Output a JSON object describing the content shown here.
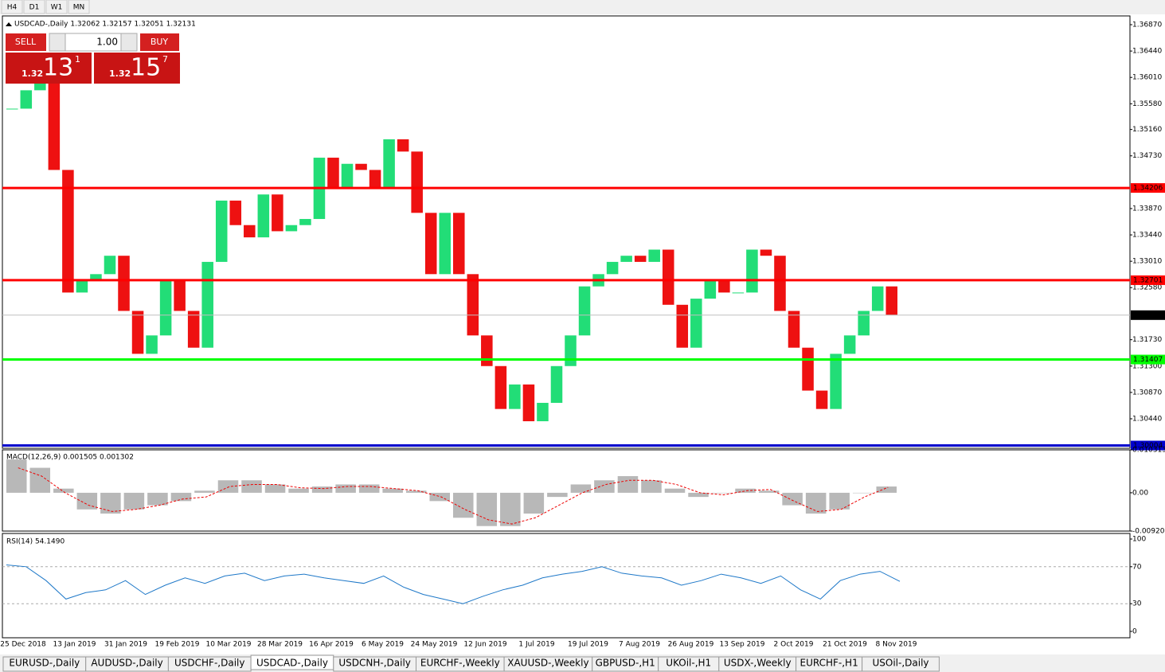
{
  "toolbar": {
    "timeframes": [
      "H4",
      "D1",
      "W1",
      "MN"
    ]
  },
  "trade_panel": {
    "sell": "SELL",
    "buy": "BUY",
    "lot": "1.00",
    "bid": {
      "prefix": "1.32",
      "big": "13",
      "small": "1"
    },
    "ask": {
      "prefix": "1.32",
      "big": "15",
      "small": "7"
    }
  },
  "chart_data": [
    {
      "type": "candlestick",
      "title": "USDCAD-,Daily 1.32062 1.32157 1.32051 1.32131",
      "close": [
        1.355,
        1.358,
        1.362,
        1.345,
        1.325,
        1.327,
        1.328,
        1.331,
        1.322,
        1.315,
        1.318,
        1.327,
        1.322,
        1.316,
        1.33,
        1.34,
        1.336,
        1.334,
        1.341,
        1.335,
        1.336,
        1.337,
        1.347,
        1.342,
        1.346,
        1.345,
        1.342,
        1.35,
        1.348,
        1.338,
        1.328,
        1.338,
        1.328,
        1.318,
        1.313,
        1.306,
        1.31,
        1.304,
        1.307,
        1.313,
        1.318,
        1.326,
        1.328,
        1.33,
        1.331,
        1.33,
        1.332,
        1.323,
        1.316,
        1.324,
        1.327,
        1.325,
        1.325,
        1.332,
        1.331,
        1.322,
        1.316,
        1.309,
        1.306,
        1.315,
        1.318,
        1.322,
        1.326,
        1.32131
      ],
      "ylim": [
        1.29959,
        1.37013
      ],
      "yticks": [
        {
          "value": 1.3687,
          "label": "1.36870"
        },
        {
          "value": 1.3644,
          "label": "1.36440"
        },
        {
          "value": 1.3601,
          "label": "1.36010"
        },
        {
          "value": 1.3558,
          "label": "1.35580"
        },
        {
          "value": 1.3516,
          "label": "1.35160"
        },
        {
          "value": 1.3473,
          "label": "1.34730"
        },
        {
          "value": 1.3387,
          "label": "1.33870"
        },
        {
          "value": 1.3344,
          "label": "1.33440"
        },
        {
          "value": 1.3301,
          "label": "1.33010"
        },
        {
          "value": 1.3258,
          "label": "1.32580"
        },
        {
          "value": 1.3173,
          "label": "1.31730"
        },
        {
          "value": 1.313,
          "label": "1.31300"
        },
        {
          "value": 1.3087,
          "label": "1.30870"
        },
        {
          "value": 1.3044,
          "label": "1.30440"
        }
      ],
      "levels": [
        {
          "value": 1.34206,
          "color": "#ff0000"
        },
        {
          "value": 1.32701,
          "color": "#ff0000"
        },
        {
          "value": 1.31407,
          "color": "#00ff00"
        },
        {
          "value": 1.30004,
          "color": "#0000cc"
        },
        {
          "value": 1.32131,
          "color": "#c0c0c0"
        }
      ],
      "dates": [
        "25 Dec 2018",
        "13 Jan 2019",
        "31 Jan 2019",
        "19 Feb 2019",
        "10 Mar 2019",
        "28 Mar 2019",
        "16 Apr 2019",
        "6 May 2019",
        "24 May 2019",
        "12 Jun 2019",
        "1 Jul 2019",
        "19 Jul 2019",
        "7 Aug 2019",
        "26 Aug 2019",
        "13 Sep 2019",
        "2 Oct 2019",
        "21 Oct 2019",
        "8 Nov 2019"
      ]
    },
    {
      "type": "macd",
      "title": "MACD(12,26,9) 0.001505 0.001302",
      "histogram": [
        0.008,
        0.006,
        0.001,
        -0.004,
        -0.005,
        -0.004,
        -0.003,
        -0.002,
        0.0005,
        0.003,
        0.003,
        0.002,
        0.001,
        0.0015,
        0.002,
        0.002,
        0.001,
        0.0005,
        -0.002,
        -0.006,
        -0.008,
        -0.008,
        -0.005,
        -0.001,
        0.002,
        0.003,
        0.004,
        0.003,
        0.001,
        -0.001,
        0.0,
        0.001,
        0.0005,
        -0.003,
        -0.005,
        -0.004,
        0.0,
        0.001505
      ],
      "signal": [
        0.006,
        0.004,
        0.0,
        -0.003,
        -0.0045,
        -0.004,
        -0.003,
        -0.0015,
        -0.001,
        0.0015,
        0.002,
        0.002,
        0.0012,
        0.001,
        0.0015,
        0.0015,
        0.001,
        0.0005,
        -0.001,
        -0.004,
        -0.0065,
        -0.0075,
        -0.006,
        -0.003,
        0.0,
        0.002,
        0.003,
        0.003,
        0.002,
        0.0,
        -0.0005,
        0.0005,
        0.0008,
        -0.002,
        -0.0045,
        -0.004,
        -0.001,
        0.001302
      ],
      "ylim": [
        -0.009203,
        0.010313
      ],
      "yticks": [
        0.010313,
        {
          "value": 0,
          "label": "0.00"
        },
        -0.009203
      ]
    },
    {
      "type": "line",
      "title": "RSI(14) 54.1490",
      "values": [
        72,
        70,
        55,
        35,
        42,
        45,
        55,
        40,
        50,
        58,
        52,
        60,
        63,
        55,
        60,
        62,
        58,
        55,
        52,
        60,
        48,
        40,
        35,
        30,
        38,
        45,
        50,
        58,
        62,
        65,
        70,
        63,
        60,
        58,
        50,
        55,
        62,
        58,
        52,
        60,
        45,
        35,
        55,
        62,
        65,
        54.149
      ],
      "ylim": [
        0,
        100
      ],
      "yticks": [
        100,
        70,
        30,
        0
      ],
      "levels": [
        70,
        30
      ],
      "color": "#1e78c8"
    }
  ],
  "tabs": [
    "EURUSD-,Daily",
    "AUDUSD-,Daily",
    "USDCHF-,Daily",
    "USDCAD-,Daily",
    "USDCNH-,Daily",
    "EURCHF-,Weekly",
    "XAUUSD-,Weekly",
    "GBPUSD-,H1",
    "UKOil-,H1",
    "USDX-,Weekly",
    "EURCHF-,H1",
    "USOil-,Daily"
  ]
}
